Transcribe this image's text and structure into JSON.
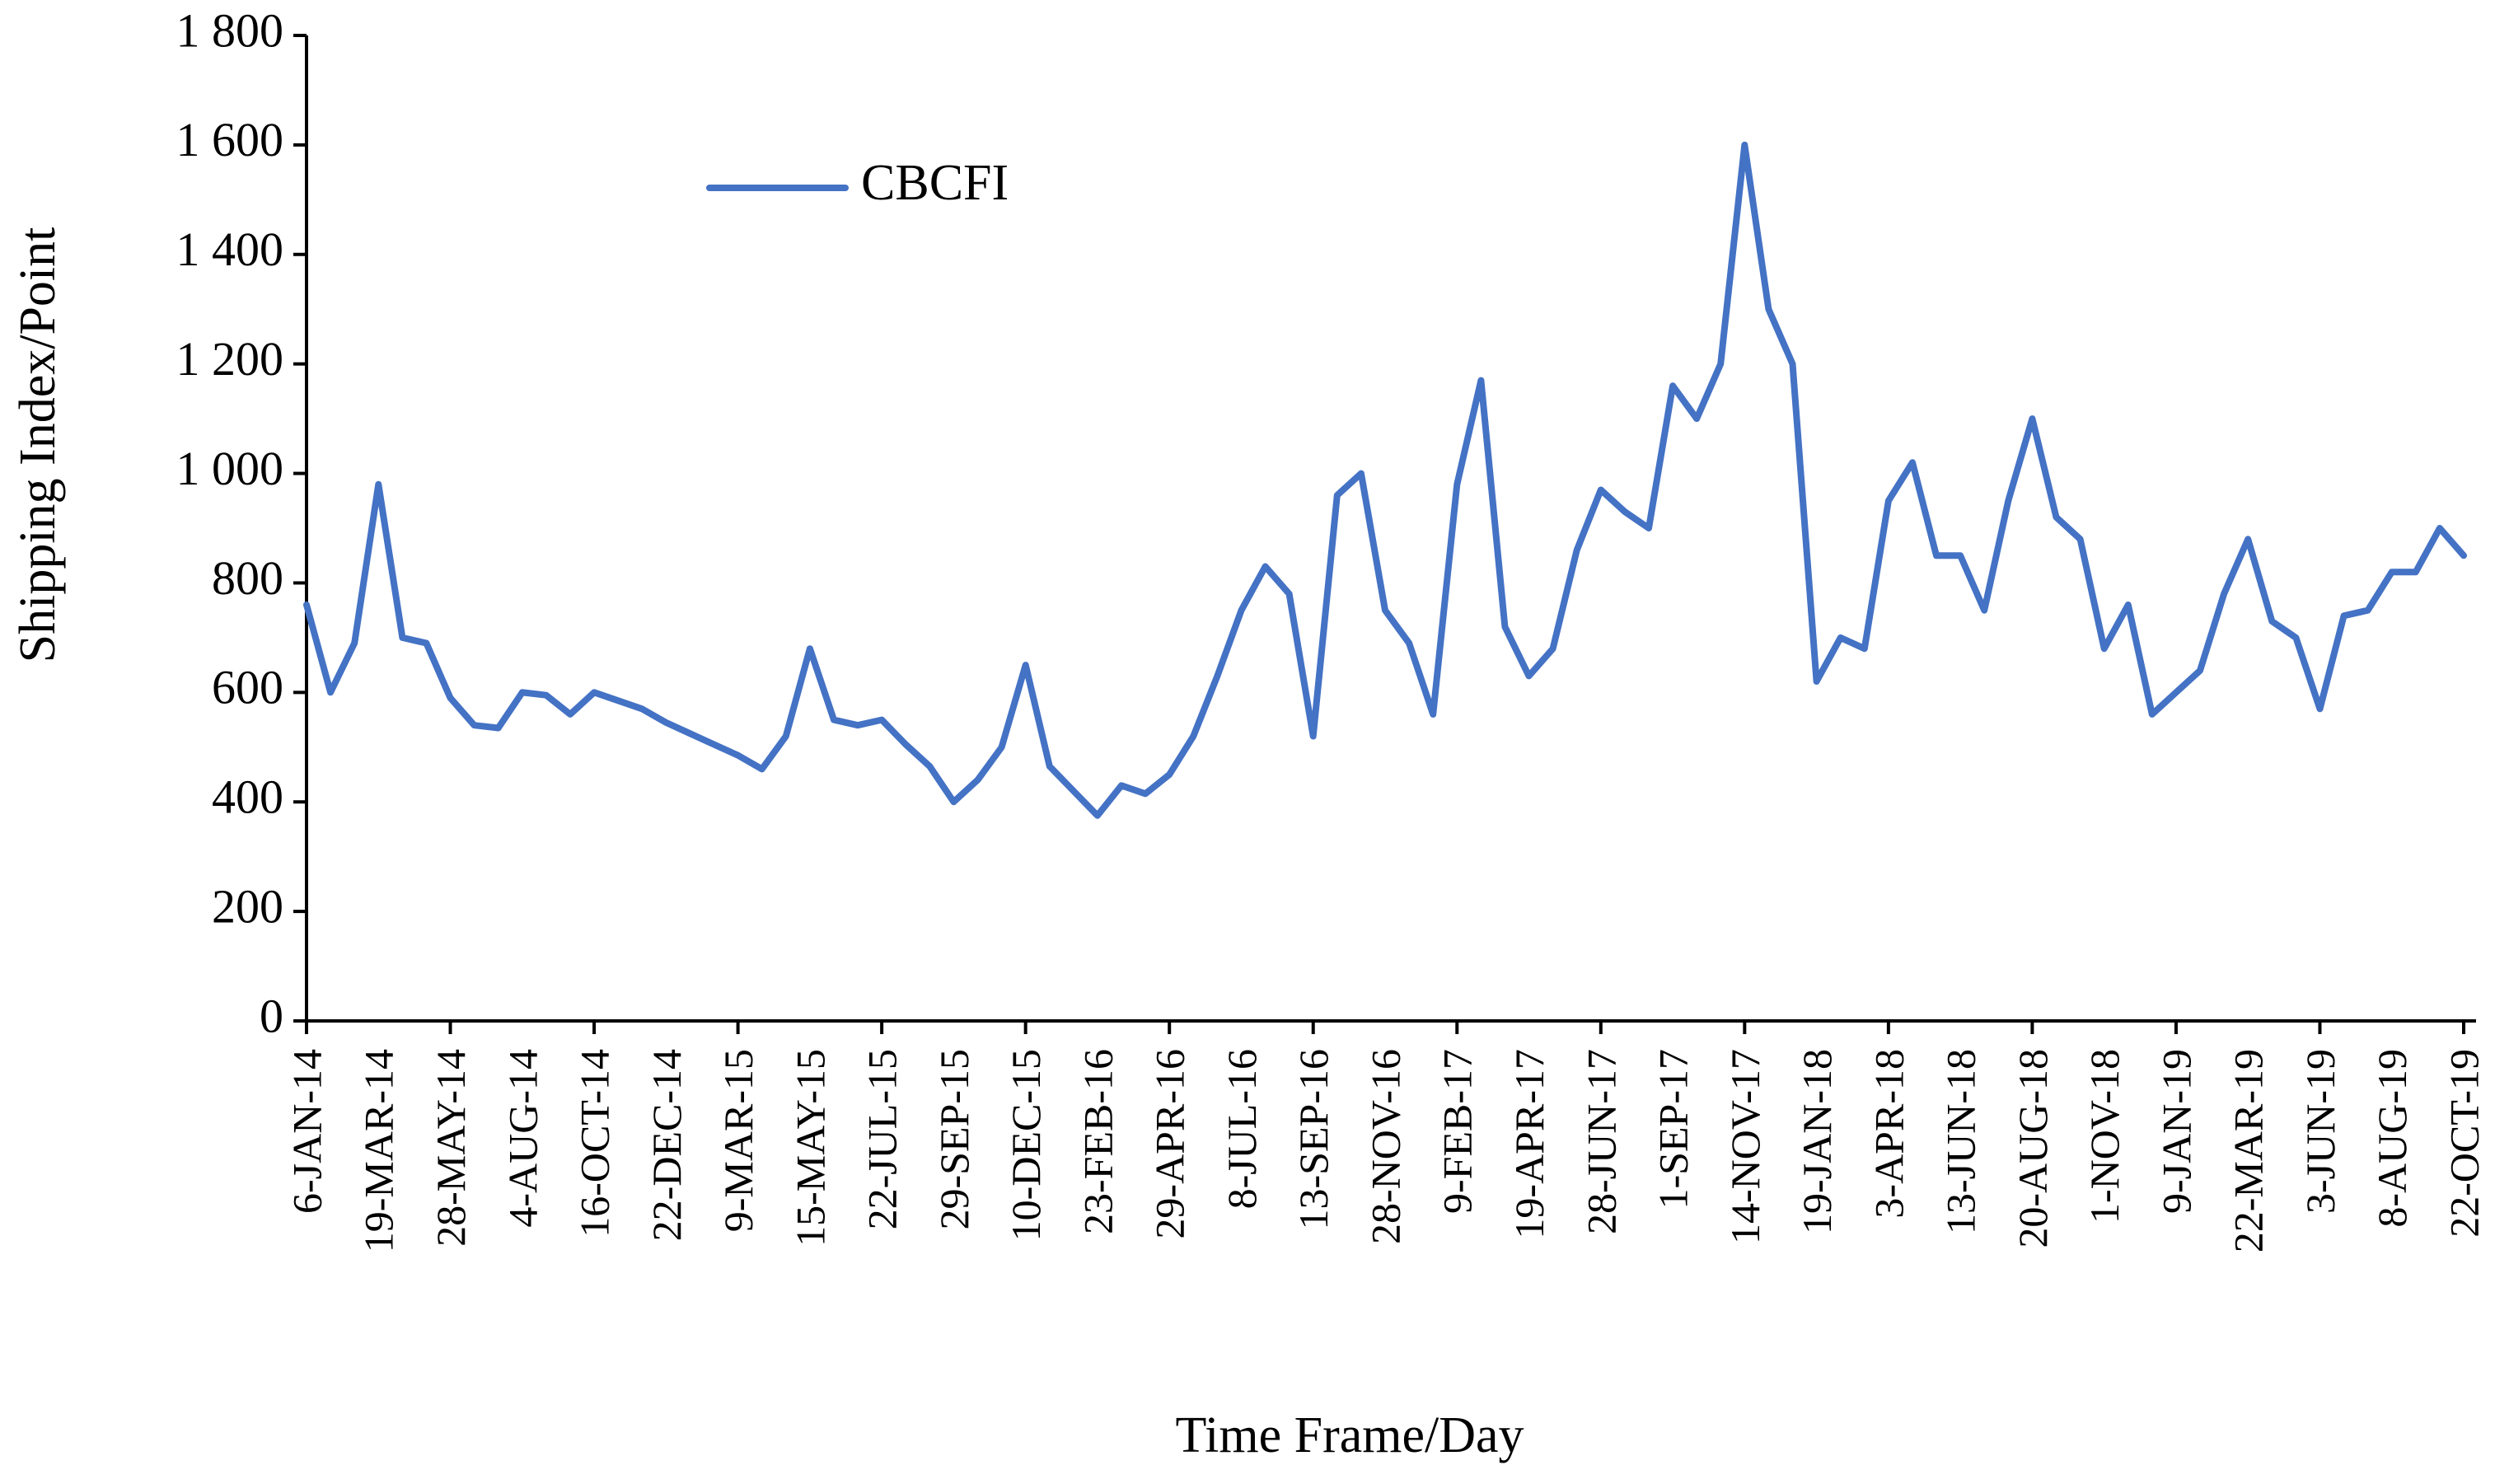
{
  "chart_data": {
    "type": "line",
    "x_label": "Time Frame/Day",
    "y_label": "Shipping Index/Point",
    "legend": "top-left",
    "categories": [
      "6-JAN-14",
      null,
      null,
      "19-MAR-14",
      null,
      null,
      "28-MAY-14",
      null,
      null,
      "4-AUG-14",
      null,
      null,
      "16-OCT-14",
      null,
      null,
      "22-DEC-14",
      null,
      null,
      "9-MAR-15",
      null,
      null,
      "15-MAY-15",
      null,
      null,
      "22-JUL-15",
      null,
      null,
      "29-SEP-15",
      null,
      null,
      "10-DEC-15",
      null,
      null,
      "23-FEB-16",
      null,
      null,
      "29-APR-16",
      null,
      null,
      "8-JUL-16",
      null,
      null,
      "13-SEP-16",
      null,
      null,
      "28-NOV-16",
      null,
      null,
      "9-FEB-17",
      null,
      null,
      "19-APR-17",
      null,
      null,
      "28-JUN-17",
      null,
      null,
      "1-SEP-17",
      null,
      null,
      "14-NOV-17",
      null,
      null,
      "19-JAN-18",
      null,
      null,
      "3-APR-18",
      null,
      null,
      "13-JUN-18",
      null,
      null,
      "20-AUG-18",
      null,
      null,
      "1-NOV-18",
      null,
      null,
      "9-JAN-19",
      null,
      null,
      "22-MAR-19",
      null,
      null,
      "3-JUN-19",
      null,
      null,
      "8-AUG-19",
      null,
      null,
      "22-OCT-19"
    ],
    "series": [
      {
        "name": "CBCFI",
        "color": "#4472c4",
        "values": [
          760,
          600,
          690,
          980,
          700,
          690,
          590,
          540,
          535,
          600,
          595,
          560,
          600,
          585,
          570,
          545,
          525,
          505,
          485,
          460,
          520,
          680,
          550,
          540,
          550,
          505,
          465,
          400,
          440,
          500,
          650,
          465,
          420,
          375,
          430,
          415,
          450,
          520,
          630,
          750,
          830,
          780,
          520,
          960,
          1000,
          750,
          690,
          560,
          980,
          1170,
          720,
          630,
          680,
          860,
          970,
          930,
          900,
          1160,
          1100,
          1200,
          1600,
          1300,
          1200,
          620,
          700,
          680,
          950,
          1020,
          850,
          850,
          750,
          950,
          1100,
          920,
          880,
          680,
          760,
          560,
          600,
          640,
          780,
          880,
          730,
          700,
          570,
          740,
          750,
          820,
          820,
          900,
          850
        ]
      }
    ],
    "ylim": [
      0,
      1800
    ],
    "yticks": [
      0,
      200,
      400,
      600,
      800,
      {
        "value": 1000,
        "label": "1 000"
      },
      {
        "value": 1200,
        "label": "1 200"
      },
      {
        "value": 1400,
        "label": "1 400"
      },
      {
        "value": 1600,
        "label": "1 600"
      },
      {
        "value": 1800,
        "label": "1 800"
      }
    ]
  }
}
